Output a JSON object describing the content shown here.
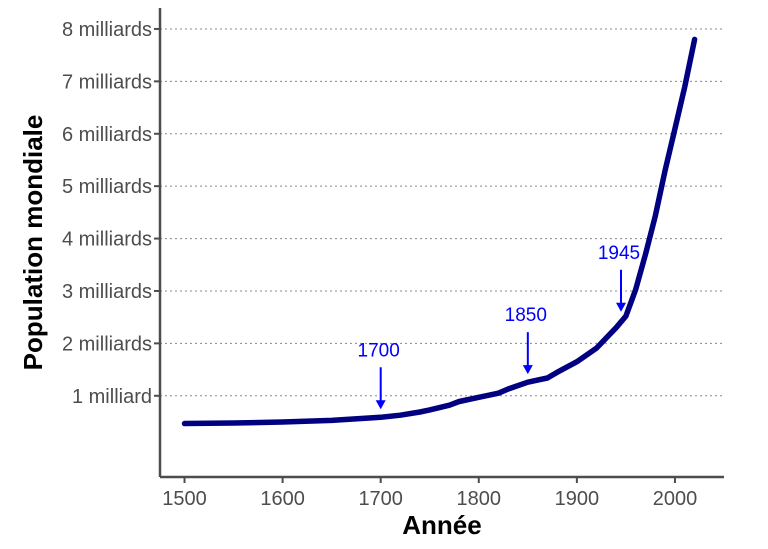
{
  "chart_data": {
    "type": "line",
    "xlabel": "Année",
    "ylabel": "Population mondiale",
    "xlim": [
      1475,
      2050
    ],
    "ylim": [
      -0.55,
      8.4
    ],
    "x_ticks": [
      1500,
      1600,
      1700,
      1800,
      1900,
      2000
    ],
    "x_tick_labels": [
      "1500",
      "1600",
      "1700",
      "1800",
      "1900",
      "2000"
    ],
    "y_ticks": [
      1,
      2,
      3,
      4,
      5,
      6,
      7,
      8
    ],
    "y_tick_labels": [
      "1 milliard",
      "2 milliards",
      "3 milliards",
      "4 milliards",
      "5 milliards",
      "6 milliards",
      "7 milliards",
      "8 milliards"
    ],
    "grid": "horizontal dotted",
    "series_color": "#000080",
    "annotation_color": "#0000ff",
    "series": [
      {
        "x": [
          1500,
          1550,
          1600,
          1650,
          1700,
          1720,
          1740,
          1750,
          1770,
          1780,
          1800,
          1820,
          1830,
          1850,
          1870,
          1880,
          1900,
          1920,
          1940,
          1950,
          1960,
          1970,
          1980,
          1990,
          2000,
          2010,
          2020
        ],
        "values": [
          0.47,
          0.48,
          0.5,
          0.53,
          0.59,
          0.63,
          0.69,
          0.73,
          0.82,
          0.89,
          0.97,
          1.05,
          1.13,
          1.26,
          1.34,
          1.45,
          1.65,
          1.91,
          2.3,
          2.52,
          3.03,
          3.7,
          4.43,
          5.3,
          6.1,
          6.9,
          7.8
        ]
      }
    ],
    "annotations": [
      {
        "label": "1700",
        "x": 1700,
        "y": 0.59
      },
      {
        "label": "1850",
        "x": 1850,
        "y": 1.26
      },
      {
        "label": "1945",
        "x": 1945,
        "y": 2.45
      }
    ]
  }
}
